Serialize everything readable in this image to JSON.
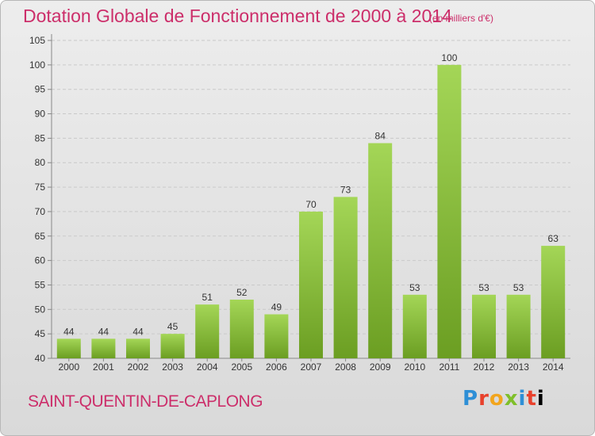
{
  "title": "Dotation Globale de Fonctionnement de 2000 à 2014",
  "subtitle": "(en milliers d'€)",
  "city": "SAINT-QUENTIN-DE-CAPLONG",
  "logo": "Proxiti",
  "colors": {
    "title": "#cc2e6a",
    "bar_light": "#a4d657",
    "bar_dark": "#6b9e22"
  },
  "chart_data": {
    "type": "bar",
    "title": "Dotation Globale de Fonctionnement de 2000 à 2014",
    "subtitle": "(en milliers d'€)",
    "xlabel": "",
    "ylabel": "",
    "categories": [
      "2000",
      "2001",
      "2002",
      "2003",
      "2004",
      "2005",
      "2006",
      "2007",
      "2008",
      "2009",
      "2010",
      "2011",
      "2012",
      "2013",
      "2014"
    ],
    "values": [
      44,
      44,
      44,
      45,
      51,
      52,
      49,
      70,
      73,
      84,
      53,
      100,
      53,
      53,
      63
    ],
    "ylim": [
      40,
      105
    ],
    "yticks": [
      40,
      45,
      50,
      55,
      60,
      65,
      70,
      75,
      80,
      85,
      90,
      95,
      100,
      105
    ],
    "grid": true
  }
}
